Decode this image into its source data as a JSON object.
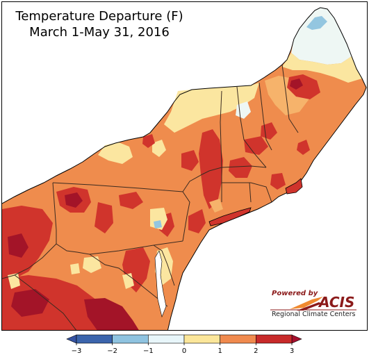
{
  "title": {
    "line1": "Temperature Departure (F)",
    "line2": "March 1-May 31, 2016"
  },
  "logo": {
    "powered_by": "Powered by",
    "name": "ACIS",
    "subtitle": "Regional Climate Centers"
  },
  "legend": {
    "ticks": [
      "−3",
      "−2",
      "−1",
      "0",
      "1",
      "2",
      "3"
    ],
    "colors": [
      "#3b64ac",
      "#8fc3e0",
      "#e8f6fa",
      "#fbe69a",
      "#f08a4e",
      "#c82a2a"
    ],
    "under_color": "#3553a4",
    "over_color": "#a50f2d"
  },
  "colors": {
    "water": "#ffffff",
    "outside_region": "#ffffff",
    "deep_red": "#a31428",
    "red": "#d0342c",
    "orange": "#ef8c4d",
    "light_orange": "#f6b36b",
    "yellow": "#fbe6a0",
    "pale": "#eef7f4",
    "light_blue": "#93c6e0",
    "border": "#6e5040"
  }
}
